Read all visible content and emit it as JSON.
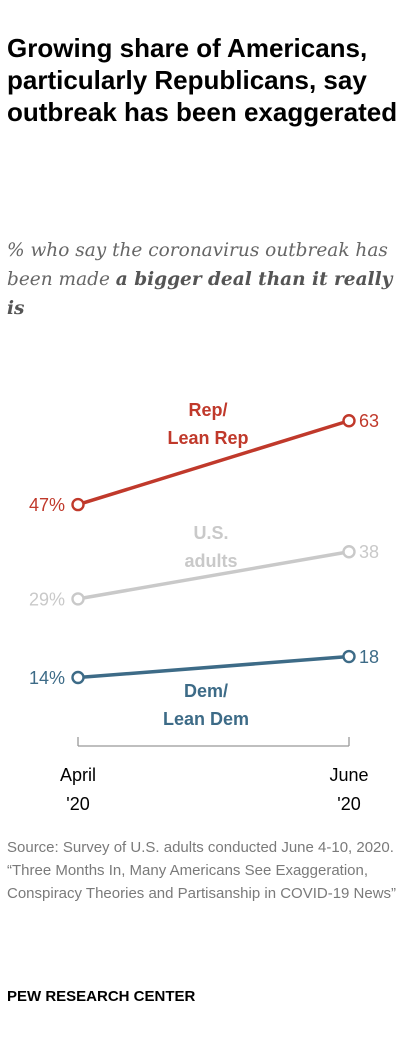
{
  "title": "Growing share of Americans, particularly Republicans, say outbreak has been exaggerated",
  "subtitle": {
    "prefix": "% who say the coronavirus outbreak has been made ",
    "emphasis": "a bigger deal than it really is"
  },
  "chart_data": {
    "type": "line",
    "x": [
      "April '20",
      "June '20"
    ],
    "ylim": [
      0,
      70
    ],
    "grid": false,
    "legend": "none",
    "series": [
      {
        "name": "Rep/ Lean Rep",
        "values": [
          47,
          63
        ],
        "value_labels": [
          "47%",
          "63"
        ],
        "color": "#c0392b"
      },
      {
        "name": "U.S. adults",
        "values": [
          29,
          38
        ],
        "value_labels": [
          "29%",
          "38"
        ],
        "color": "#c9c9c9"
      },
      {
        "name": "Dem/ Lean Dem",
        "values": [
          14,
          18
        ],
        "value_labels": [
          "14%",
          "18"
        ],
        "color": "#3d6b87"
      }
    ],
    "tick_labels": [
      [
        "April",
        "'20"
      ],
      [
        "June",
        "'20"
      ]
    ]
  },
  "footer": {
    "source": "Source: Survey of U.S. adults conducted June 4-10, 2020.",
    "citation": "“Three Months In, Many Americans See Exaggeration, Conspiracy Theories and Partisanship in COVID-19 News”"
  },
  "brand": "PEW RESEARCH CENTER"
}
